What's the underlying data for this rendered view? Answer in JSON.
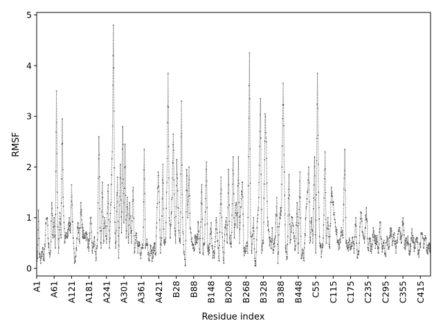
{
  "chart_data": {
    "type": "line",
    "title": "",
    "xlabel": "Residue index",
    "ylabel": "RMSF",
    "ylim": [
      -0.15,
      5.05
    ],
    "yticks": [
      0,
      1,
      2,
      3,
      4,
      5
    ],
    "xticks": [
      {
        "index": 0,
        "label": "A1"
      },
      {
        "index": 60,
        "label": "A61"
      },
      {
        "index": 120,
        "label": "A121"
      },
      {
        "index": 180,
        "label": "A181"
      },
      {
        "index": 240,
        "label": "A241"
      },
      {
        "index": 300,
        "label": "A301"
      },
      {
        "index": 360,
        "label": "A361"
      },
      {
        "index": 420,
        "label": "A421"
      },
      {
        "index": 480,
        "label": "B28"
      },
      {
        "index": 540,
        "label": "B88"
      },
      {
        "index": 600,
        "label": "B148"
      },
      {
        "index": 660,
        "label": "B208"
      },
      {
        "index": 720,
        "label": "B268"
      },
      {
        "index": 780,
        "label": "B328"
      },
      {
        "index": 840,
        "label": "B388"
      },
      {
        "index": 900,
        "label": "B448"
      },
      {
        "index": 960,
        "label": "C55"
      },
      {
        "index": 1020,
        "label": "C115"
      },
      {
        "index": 1080,
        "label": "C175"
      },
      {
        "index": 1140,
        "label": "C235"
      },
      {
        "index": 1200,
        "label": "C295"
      },
      {
        "index": 1260,
        "label": "C355"
      },
      {
        "index": 1320,
        "label": "C415"
      }
    ],
    "x_range": [
      0,
      1355
    ],
    "series": [
      {
        "color": "#5a5a5a",
        "style": "dotted line with point markers",
        "profile": [
          [
            0,
            0.3
          ],
          [
            3,
            0.2
          ],
          [
            6,
            1.15
          ],
          [
            9,
            0.3
          ],
          [
            14,
            0.1
          ],
          [
            20,
            0.4
          ],
          [
            26,
            0.15
          ],
          [
            32,
            0.9
          ],
          [
            36,
            1.0
          ],
          [
            40,
            0.5
          ],
          [
            44,
            0.3
          ],
          [
            48,
            0.35
          ],
          [
            52,
            1.3
          ],
          [
            56,
            0.6
          ],
          [
            60,
            1.0
          ],
          [
            64,
            0.4
          ],
          [
            68,
            3.5
          ],
          [
            71,
            1.5
          ],
          [
            75,
            0.3
          ],
          [
            80,
            1.1
          ],
          [
            84,
            0.6
          ],
          [
            88,
            2.95
          ],
          [
            91,
            1.4
          ],
          [
            96,
            0.5
          ],
          [
            100,
            0.7
          ],
          [
            106,
            0.6
          ],
          [
            112,
            1.0
          ],
          [
            116,
            0.7
          ],
          [
            120,
            1.65
          ],
          [
            125,
            0.6
          ],
          [
            130,
            0.1
          ],
          [
            136,
            0.4
          ],
          [
            142,
            0.9
          ],
          [
            148,
            0.5
          ],
          [
            152,
            1.3
          ],
          [
            156,
            0.8
          ],
          [
            162,
            0.6
          ],
          [
            168,
            0.7
          ],
          [
            174,
            0.6
          ],
          [
            180,
            0.4
          ],
          [
            186,
            1.0
          ],
          [
            192,
            0.3
          ],
          [
            198,
            0.6
          ],
          [
            204,
            0.15
          ],
          [
            210,
            0.7
          ],
          [
            214,
            2.6
          ],
          [
            218,
            0.8
          ],
          [
            222,
            0.4
          ],
          [
            226,
            1.7
          ],
          [
            230,
            0.5
          ],
          [
            234,
            1.0
          ],
          [
            240,
            0.5
          ],
          [
            246,
            1.65
          ],
          [
            250,
            0.4
          ],
          [
            256,
            1.3
          ],
          [
            260,
            2.3
          ],
          [
            264,
            4.8
          ],
          [
            268,
            1.2
          ],
          [
            272,
            0.4
          ],
          [
            278,
            1.8
          ],
          [
            282,
            0.2
          ],
          [
            288,
            2.05
          ],
          [
            292,
            0.7
          ],
          [
            296,
            2.8
          ],
          [
            300,
            0.9
          ],
          [
            304,
            2.45
          ],
          [
            308,
            0.6
          ],
          [
            312,
            1.4
          ],
          [
            316,
            0.5
          ],
          [
            320,
            1.3
          ],
          [
            326,
            0.5
          ],
          [
            332,
            1.6
          ],
          [
            336,
            0.3
          ],
          [
            342,
            0.7
          ],
          [
            348,
            0.3
          ],
          [
            352,
            0.5
          ],
          [
            356,
            0.3
          ],
          [
            360,
            0.3
          ],
          [
            366,
            0.4
          ],
          [
            370,
            2.35
          ],
          [
            374,
            0.4
          ],
          [
            380,
            0.5
          ],
          [
            386,
            0.15
          ],
          [
            392,
            0.4
          ],
          [
            398,
            0.2
          ],
          [
            404,
            0.5
          ],
          [
            410,
            0.3
          ],
          [
            414,
            1.2
          ],
          [
            418,
            1.9
          ],
          [
            422,
            1.3
          ],
          [
            426,
            0.3
          ],
          [
            430,
            0.6
          ],
          [
            434,
            2.05
          ],
          [
            438,
            0.5
          ],
          [
            444,
            0.6
          ],
          [
            448,
            1.7
          ],
          [
            452,
            3.85
          ],
          [
            456,
            1.0
          ],
          [
            460,
            0.6
          ],
          [
            466,
            1.4
          ],
          [
            470,
            2.65
          ],
          [
            474,
            1.0
          ],
          [
            478,
            0.5
          ],
          [
            482,
            2.15
          ],
          [
            486,
            1.2
          ],
          [
            490,
            0.7
          ],
          [
            494,
            0.5
          ],
          [
            498,
            3.3
          ],
          [
            502,
            1.0
          ],
          [
            506,
            0.3
          ],
          [
            512,
            0.05
          ],
          [
            516,
            1.95
          ],
          [
            520,
            1.0
          ],
          [
            524,
            2.0
          ],
          [
            528,
            0.8
          ],
          [
            534,
            0.6
          ],
          [
            540,
            0.4
          ],
          [
            546,
            0.6
          ],
          [
            552,
            0.5
          ],
          [
            556,
            0.9
          ],
          [
            562,
            0.3
          ],
          [
            568,
            1.65
          ],
          [
            572,
            0.3
          ],
          [
            578,
            0.5
          ],
          [
            584,
            2.1
          ],
          [
            588,
            0.4
          ],
          [
            594,
            0.3
          ],
          [
            600,
            0.9
          ],
          [
            606,
            0.2
          ],
          [
            612,
            0.3
          ],
          [
            618,
            1.0
          ],
          [
            624,
            0.4
          ],
          [
            628,
            0.15
          ],
          [
            634,
            1.8
          ],
          [
            638,
            0.7
          ],
          [
            644,
            0.1
          ],
          [
            648,
            0.8
          ],
          [
            652,
            1.0
          ],
          [
            656,
            0.5
          ],
          [
            660,
            1.95
          ],
          [
            664,
            0.6
          ],
          [
            670,
            0.5
          ],
          [
            676,
            2.2
          ],
          [
            680,
            0.6
          ],
          [
            686,
            1.3
          ],
          [
            690,
            0.8
          ],
          [
            694,
            2.2
          ],
          [
            698,
            0.5
          ],
          [
            702,
            1.2
          ],
          [
            708,
            1.7
          ],
          [
            712,
            0.4
          ],
          [
            718,
            0.3
          ],
          [
            722,
            0.5
          ],
          [
            726,
            0.3
          ],
          [
            732,
            4.25
          ],
          [
            736,
            0.7
          ],
          [
            740,
            0.3
          ],
          [
            746,
            1.0
          ],
          [
            750,
            0.2
          ],
          [
            754,
            0.05
          ],
          [
            758,
            0.8
          ],
          [
            764,
            1.4
          ],
          [
            770,
            3.35
          ],
          [
            774,
            0.3
          ],
          [
            780,
            0.5
          ],
          [
            786,
            3.05
          ],
          [
            790,
            2.5
          ],
          [
            794,
            1.0
          ],
          [
            800,
            0.6
          ],
          [
            806,
            0.4
          ],
          [
            810,
            0.8
          ],
          [
            814,
            0.3
          ],
          [
            820,
            0.6
          ],
          [
            826,
            1.4
          ],
          [
            830,
            0.1
          ],
          [
            836,
            1.0
          ],
          [
            842,
            1.2
          ],
          [
            848,
            3.65
          ],
          [
            852,
            1.9
          ],
          [
            856,
            0.4
          ],
          [
            862,
            0.2
          ],
          [
            868,
            1.85
          ],
          [
            872,
            0.5
          ],
          [
            878,
            1.0
          ],
          [
            884,
            0.7
          ],
          [
            890,
            0.4
          ],
          [
            896,
            1.3
          ],
          [
            900,
            0.3
          ],
          [
            906,
            1.9
          ],
          [
            910,
            0.2
          ],
          [
            916,
            0.3
          ],
          [
            920,
            0.15
          ],
          [
            926,
            1.0
          ],
          [
            932,
            1.5
          ],
          [
            936,
            2.0
          ],
          [
            940,
            0.5
          ],
          [
            946,
            1.0
          ],
          [
            950,
            0.5
          ],
          [
            956,
            2.2
          ],
          [
            960,
            0.3
          ],
          [
            966,
            3.85
          ],
          [
            970,
            1.5
          ],
          [
            974,
            0.5
          ],
          [
            980,
            0.3
          ],
          [
            986,
            0.6
          ],
          [
            992,
            2.3
          ],
          [
            996,
            0.5
          ],
          [
            1002,
            1.0
          ],
          [
            1008,
            0.4
          ],
          [
            1014,
            1.6
          ],
          [
            1018,
            1.3
          ],
          [
            1024,
            1.1
          ],
          [
            1030,
            0.8
          ],
          [
            1036,
            0.5
          ],
          [
            1042,
            0.4
          ],
          [
            1048,
            0.8
          ],
          [
            1054,
            0.6
          ],
          [
            1060,
            2.35
          ],
          [
            1064,
            0.5
          ],
          [
            1070,
            0.4
          ],
          [
            1076,
            0.6
          ],
          [
            1080,
            0.4
          ],
          [
            1086,
            0.6
          ],
          [
            1092,
            0.3
          ],
          [
            1098,
            1.0
          ],
          [
            1104,
            0.2
          ],
          [
            1110,
            0.5
          ],
          [
            1116,
            1.1
          ],
          [
            1122,
            0.7
          ],
          [
            1128,
            0.5
          ],
          [
            1134,
            1.2
          ],
          [
            1140,
            0.4
          ],
          [
            1146,
            0.6
          ],
          [
            1152,
            0.3
          ],
          [
            1158,
            0.8
          ],
          [
            1164,
            0.5
          ],
          [
            1170,
            0.6
          ],
          [
            1176,
            0.3
          ],
          [
            1182,
            0.9
          ],
          [
            1188,
            0.4
          ],
          [
            1194,
            0.5
          ],
          [
            1200,
            0.3
          ],
          [
            1206,
            0.6
          ],
          [
            1212,
            0.4
          ],
          [
            1218,
            0.8
          ],
          [
            1224,
            0.5
          ],
          [
            1230,
            0.7
          ],
          [
            1236,
            0.3
          ],
          [
            1242,
            0.6
          ],
          [
            1248,
            0.8
          ],
          [
            1254,
            0.5
          ],
          [
            1260,
            1.0
          ],
          [
            1266,
            0.4
          ],
          [
            1272,
            0.6
          ],
          [
            1278,
            0.5
          ],
          [
            1284,
            0.3
          ],
          [
            1290,
            0.7
          ],
          [
            1296,
            0.5
          ],
          [
            1302,
            0.4
          ],
          [
            1308,
            0.6
          ],
          [
            1314,
            0.3
          ],
          [
            1320,
            0.5
          ],
          [
            1326,
            0.7
          ],
          [
            1332,
            0.4
          ],
          [
            1338,
            0.6
          ],
          [
            1344,
            0.3
          ],
          [
            1350,
            0.5
          ],
          [
            1355,
            0.4
          ]
        ]
      }
    ],
    "grid": false,
    "legend": "none"
  }
}
